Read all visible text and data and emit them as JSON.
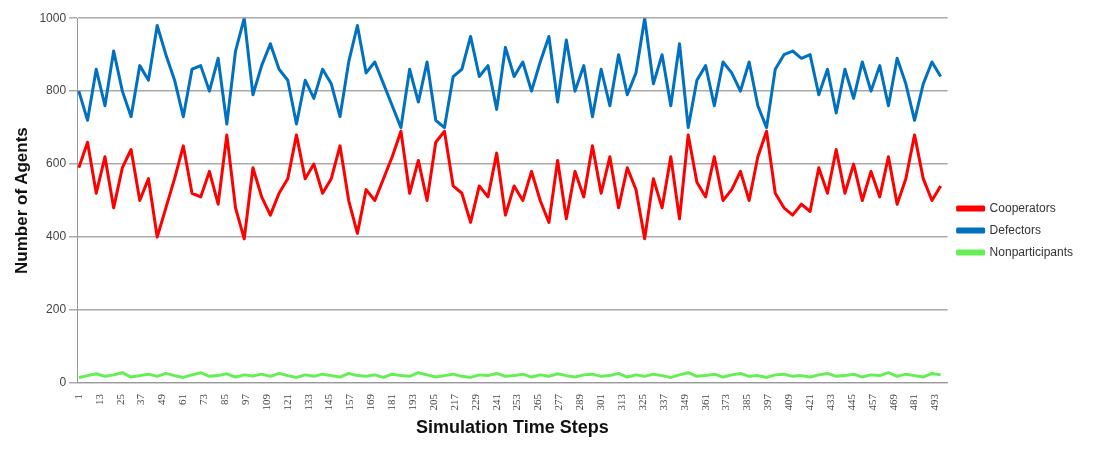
{
  "chart_data": {
    "type": "line",
    "xlabel": "Simulation Time Steps",
    "ylabel": "Number of Agents",
    "x": [
      1,
      6,
      11,
      16,
      21,
      26,
      31,
      36,
      41,
      46,
      51,
      56,
      61,
      66,
      71,
      76,
      81,
      86,
      91,
      96,
      101,
      106,
      111,
      116,
      121,
      126,
      131,
      136,
      141,
      146,
      151,
      156,
      161,
      166,
      171,
      176,
      181,
      186,
      191,
      196,
      201,
      206,
      211,
      216,
      221,
      226,
      231,
      236,
      241,
      246,
      251,
      256,
      261,
      266,
      271,
      276,
      281,
      286,
      291,
      296,
      301,
      306,
      311,
      316,
      321,
      326,
      331,
      336,
      341,
      346,
      351,
      356,
      361,
      366,
      371,
      376,
      381,
      386,
      391,
      396,
      401,
      406,
      411,
      416,
      421,
      426,
      431,
      436,
      441,
      446,
      451,
      456,
      461,
      466,
      471,
      476,
      481,
      486,
      491,
      496
    ],
    "series": [
      {
        "name": "Cooperators",
        "color": "#ff0000",
        "values": [
          590,
          660,
          520,
          620,
          480,
          590,
          640,
          500,
          560,
          400,
          480,
          560,
          650,
          520,
          510,
          580,
          490,
          680,
          480,
          395,
          590,
          510,
          460,
          520,
          560,
          680,
          560,
          600,
          520,
          560,
          650,
          500,
          410,
          530,
          500,
          560,
          620,
          690,
          520,
          610,
          500,
          660,
          690,
          540,
          520,
          440,
          540,
          510,
          630,
          460,
          540,
          500,
          580,
          500,
          440,
          610,
          450,
          580,
          510,
          650,
          520,
          620,
          480,
          590,
          530,
          395,
          560,
          480,
          620,
          450,
          680,
          550,
          510,
          620,
          500,
          530,
          580,
          500,
          620,
          690,
          520,
          480,
          460,
          490,
          470,
          590,
          520,
          640,
          520,
          600,
          500,
          580,
          510,
          620,
          490,
          560,
          680,
          560,
          500,
          540
        ]
      },
      {
        "name": "Defectors",
        "color": "#0070c0",
        "values": [
          800,
          720,
          860,
          760,
          910,
          800,
          730,
          870,
          830,
          980,
          900,
          830,
          730,
          860,
          870,
          800,
          890,
          710,
          910,
          1000,
          790,
          870,
          930,
          860,
          830,
          710,
          830,
          780,
          860,
          820,
          730,
          880,
          980,
          850,
          880,
          820,
          760,
          700,
          860,
          770,
          880,
          720,
          700,
          840,
          860,
          950,
          840,
          870,
          750,
          920,
          840,
          880,
          800,
          880,
          950,
          770,
          940,
          800,
          870,
          730,
          860,
          760,
          900,
          790,
          850,
          1000,
          820,
          900,
          760,
          930,
          700,
          830,
          870,
          760,
          880,
          850,
          800,
          880,
          760,
          700,
          860,
          900,
          910,
          890,
          900,
          790,
          860,
          740,
          860,
          780,
          880,
          800,
          870,
          760,
          890,
          820,
          720,
          820,
          880,
          840
        ]
      },
      {
        "name": "Nonparticipants",
        "color": "#66ee55",
        "values": [
          15,
          20,
          25,
          18,
          22,
          28,
          16,
          20,
          24,
          18,
          26,
          20,
          15,
          22,
          28,
          18,
          20,
          25,
          16,
          22,
          19,
          24,
          18,
          26,
          20,
          15,
          22,
          18,
          24,
          20,
          16,
          26,
          20,
          18,
          22,
          15,
          24,
          20,
          18,
          28,
          22,
          16,
          20,
          24,
          18,
          15,
          22,
          20,
          26,
          18,
          20,
          24,
          16,
          22,
          18,
          25,
          20,
          16,
          22,
          24,
          18,
          20,
          26,
          16,
          22,
          18,
          24,
          20,
          15,
          22,
          28,
          18,
          20,
          24,
          16,
          22,
          26,
          18,
          20,
          15,
          22,
          24,
          18,
          20,
          16,
          22,
          26,
          18,
          20,
          24,
          16,
          22,
          20,
          28,
          18,
          24,
          20,
          16,
          26,
          22
        ]
      }
    ],
    "xlim": [
      0,
      500
    ],
    "xticks": [
      1,
      13,
      25,
      37,
      49,
      61,
      73,
      85,
      97,
      109,
      121,
      133,
      145,
      157,
      169,
      181,
      193,
      205,
      217,
      229,
      241,
      253,
      265,
      277,
      289,
      301,
      313,
      325,
      337,
      349,
      361,
      373,
      385,
      397,
      409,
      421,
      433,
      445,
      457,
      469,
      481,
      493
    ],
    "ylim": [
      0,
      1000
    ],
    "yticks": [
      0,
      200,
      400,
      600,
      800,
      1000
    ],
    "grid": "y",
    "legend": "right",
    "marker": "none",
    "line_style": "solid"
  }
}
